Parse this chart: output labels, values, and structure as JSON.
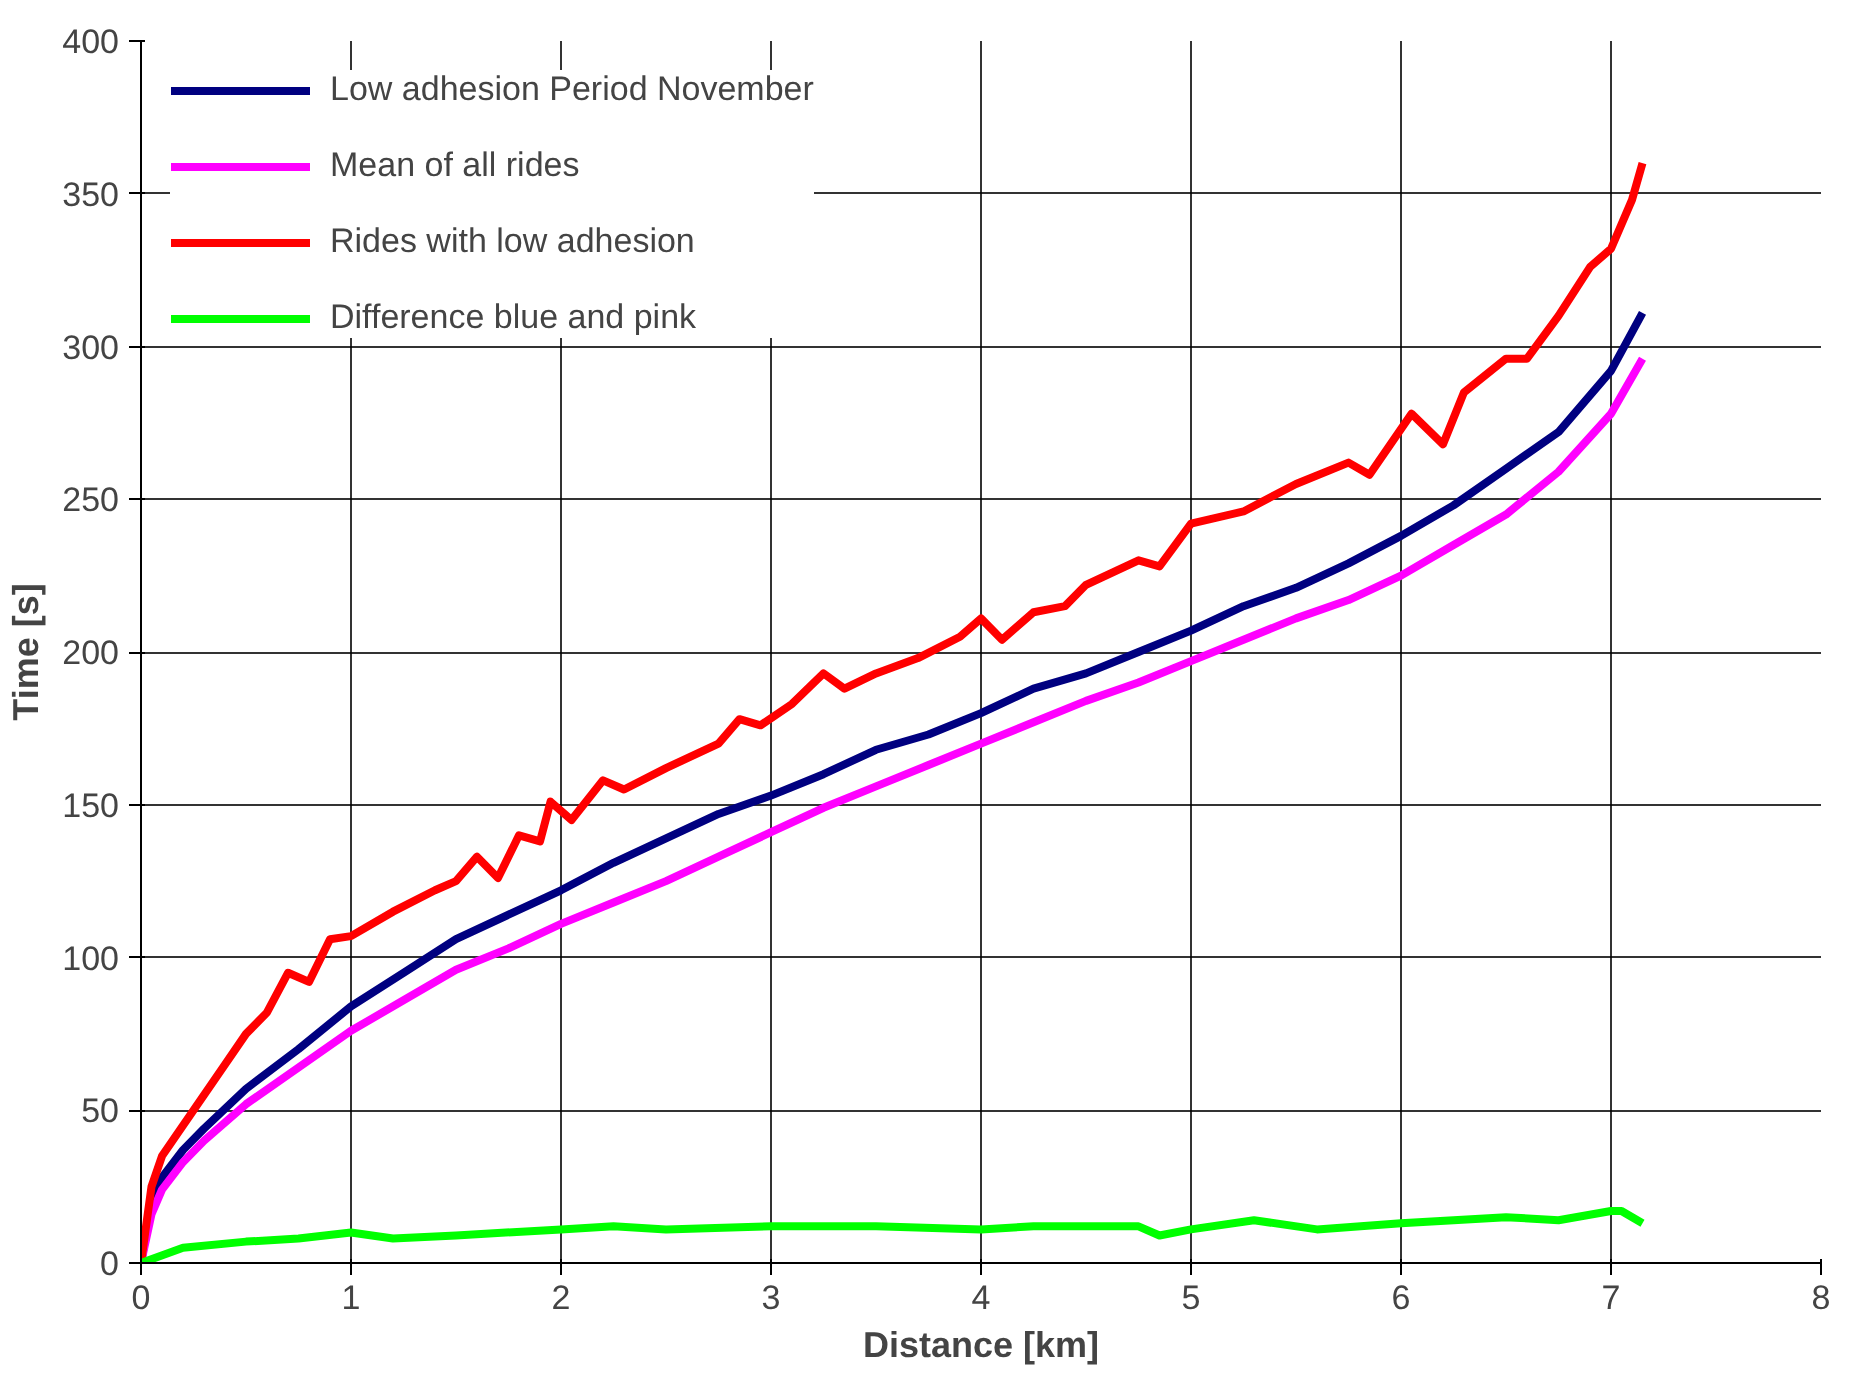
{
  "chart_data": {
    "type": "line",
    "xlabel": "Distance [km]",
    "ylabel": "Time [s]",
    "xlim": [
      0,
      8
    ],
    "ylim": [
      0,
      400
    ],
    "xticks": [
      0,
      1,
      2,
      3,
      4,
      5,
      6,
      7,
      8
    ],
    "yticks": [
      0,
      50,
      100,
      150,
      200,
      250,
      300,
      350,
      400
    ],
    "grid": true,
    "legend": "top left",
    "marker": "none",
    "line_style": "solid",
    "series": [
      {
        "name": "Low adhesion Period November",
        "color": "#000080",
        "x": [
          0,
          0.05,
          0.1,
          0.2,
          0.3,
          0.5,
          0.75,
          1,
          1.25,
          1.5,
          1.75,
          2,
          2.25,
          2.5,
          2.75,
          3,
          3.25,
          3.5,
          3.75,
          4,
          4.25,
          4.5,
          4.75,
          5,
          5.25,
          5.5,
          5.75,
          6,
          6.25,
          6.5,
          6.75,
          7,
          7.15
        ],
        "values": [
          0,
          20,
          28,
          37,
          44,
          57,
          70,
          84,
          95,
          106,
          114,
          122,
          131,
          139,
          147,
          153,
          160,
          168,
          173,
          180,
          188,
          193,
          200,
          207,
          215,
          221,
          229,
          238,
          248,
          260,
          272,
          292,
          311
        ]
      },
      {
        "name": "Mean of all rides",
        "color": "#ff00ff",
        "x": [
          0,
          0.05,
          0.1,
          0.2,
          0.3,
          0.5,
          0.75,
          1,
          1.25,
          1.5,
          1.75,
          2,
          2.25,
          2.5,
          2.75,
          3,
          3.25,
          3.5,
          3.75,
          4,
          4.25,
          4.5,
          4.75,
          5,
          5.25,
          5.5,
          5.75,
          6,
          6.25,
          6.5,
          6.75,
          7,
          7.15
        ],
        "values": [
          0,
          16,
          24,
          33,
          40,
          52,
          64,
          76,
          86,
          96,
          103,
          111,
          118,
          125,
          133,
          141,
          149,
          156,
          163,
          170,
          177,
          184,
          190,
          197,
          204,
          211,
          217,
          225,
          235,
          245,
          259,
          278,
          296
        ]
      },
      {
        "name": "Rides with low adhesion",
        "color": "#ff0000",
        "x": [
          0,
          0.05,
          0.1,
          0.2,
          0.3,
          0.4,
          0.5,
          0.6,
          0.7,
          0.8,
          0.9,
          1,
          1.2,
          1.4,
          1.5,
          1.6,
          1.7,
          1.8,
          1.9,
          1.95,
          2.05,
          2.2,
          2.3,
          2.5,
          2.75,
          2.85,
          2.95,
          3.1,
          3.25,
          3.35,
          3.5,
          3.7,
          3.9,
          4,
          4.1,
          4.25,
          4.4,
          4.5,
          4.75,
          4.85,
          5,
          5.25,
          5.5,
          5.75,
          5.85,
          6,
          6.05,
          6.2,
          6.3,
          6.5,
          6.6,
          6.75,
          6.9,
          7,
          7.1,
          7.15
        ],
        "values": [
          0,
          25,
          35,
          45,
          55,
          65,
          75,
          82,
          95,
          92,
          106,
          107,
          115,
          122,
          125,
          133,
          126,
          140,
          138,
          151,
          145,
          158,
          155,
          162,
          170,
          178,
          176,
          183,
          193,
          188,
          193,
          198,
          205,
          211,
          204,
          213,
          215,
          222,
          230,
          228,
          242,
          246,
          255,
          262,
          258,
          273,
          278,
          268,
          285,
          296,
          296,
          310,
          326,
          332,
          348,
          360
        ]
      },
      {
        "name": "Difference blue and pink",
        "color": "#00ff00",
        "x": [
          0,
          0.2,
          0.5,
          0.75,
          1,
          1.2,
          1.5,
          2,
          2.25,
          2.5,
          3,
          3.5,
          4,
          4.25,
          4.75,
          4.85,
          5,
          5.3,
          5.6,
          6,
          6.5,
          6.75,
          7,
          7.05,
          7.15
        ],
        "values": [
          0,
          5,
          7,
          8,
          10,
          8,
          9,
          11,
          12,
          11,
          12,
          12,
          11,
          12,
          12,
          9,
          11,
          14,
          11,
          13,
          15,
          14,
          17,
          17,
          13
        ]
      }
    ]
  }
}
